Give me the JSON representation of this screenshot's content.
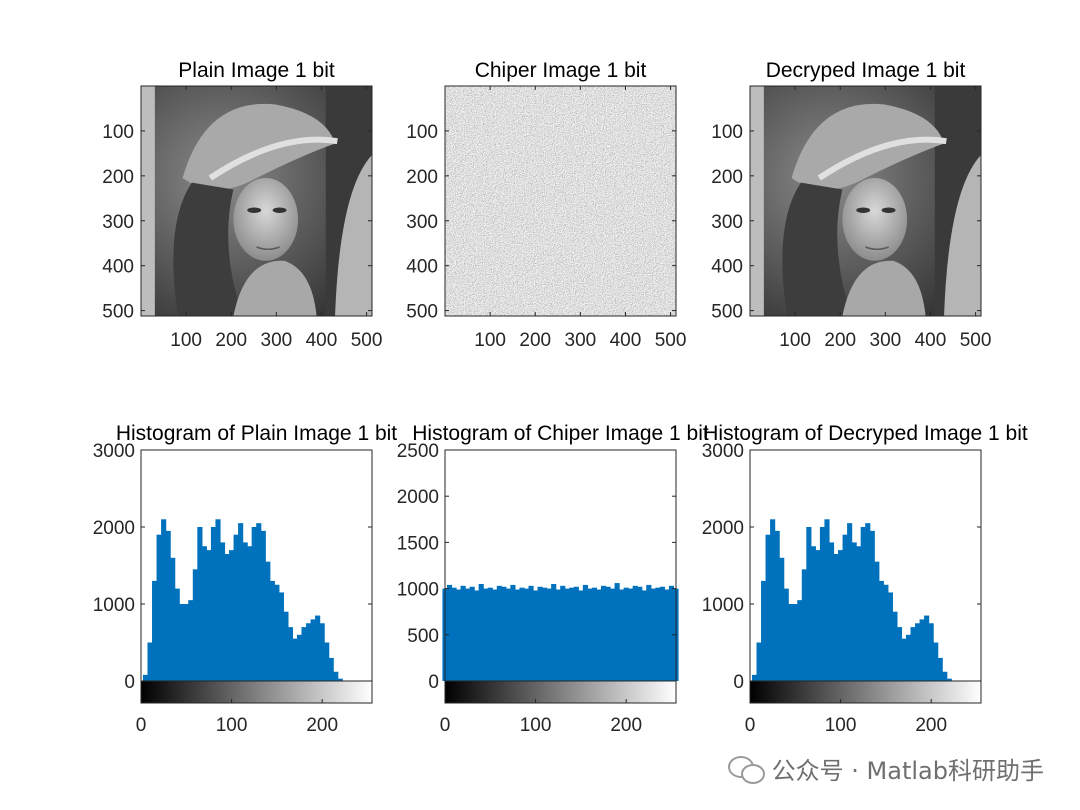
{
  "chart_data": [
    {
      "type": "image",
      "title": "Plain Image 1 bit",
      "content": "grayscale photo",
      "image_size": [
        512,
        512
      ],
      "xticks": [
        100,
        200,
        300,
        400,
        500
      ],
      "yticks": [
        100,
        200,
        300,
        400,
        500
      ]
    },
    {
      "type": "image",
      "title": "Chiper Image 1 bit",
      "content": "random noise",
      "image_size": [
        512,
        512
      ],
      "xticks": [
        100,
        200,
        300,
        400,
        500
      ],
      "yticks": [
        100,
        200,
        300,
        400,
        500
      ]
    },
    {
      "type": "image",
      "title": "Decryped Image 1 bit",
      "content": "grayscale photo",
      "image_size": [
        512,
        512
      ],
      "xticks": [
        100,
        200,
        300,
        400,
        500
      ],
      "yticks": [
        100,
        200,
        300,
        400,
        500
      ]
    },
    {
      "type": "bar",
      "title": "Histogram of Plain Image 1 bit",
      "color": "#0072BD",
      "xlim": [
        0,
        255
      ],
      "ylim": [
        0,
        3000
      ],
      "xticks": [
        0,
        100,
        200
      ],
      "yticks": [
        0,
        1000,
        2000,
        3000
      ],
      "colorbar": "grayscale",
      "x": [
        0,
        5,
        10,
        15,
        20,
        25,
        30,
        35,
        40,
        45,
        50,
        55,
        60,
        65,
        70,
        75,
        80,
        85,
        90,
        95,
        100,
        105,
        110,
        115,
        120,
        125,
        130,
        135,
        140,
        145,
        150,
        155,
        160,
        165,
        170,
        175,
        180,
        185,
        190,
        195,
        200,
        205,
        210,
        215,
        220,
        225,
        230,
        235,
        240,
        245,
        250,
        255
      ],
      "values": [
        0,
        80,
        500,
        1300,
        1900,
        2100,
        1950,
        1600,
        1200,
        1000,
        1000,
        1050,
        1450,
        2000,
        1750,
        1700,
        2000,
        2100,
        1800,
        1650,
        1700,
        1900,
        2050,
        1800,
        1750,
        2000,
        2050,
        1950,
        1550,
        1300,
        1250,
        1150,
        900,
        700,
        550,
        600,
        700,
        750,
        800,
        850,
        750,
        500,
        300,
        120,
        30,
        0,
        0,
        0,
        0,
        0,
        0,
        0
      ]
    },
    {
      "type": "bar",
      "title": "Histogram of Chiper Image 1 bit",
      "color": "#0072BD",
      "xlim": [
        0,
        255
      ],
      "ylim": [
        0,
        2500
      ],
      "xticks": [
        0,
        100,
        200
      ],
      "yticks": [
        0,
        500,
        1000,
        1500,
        2000,
        2500
      ],
      "colorbar": "grayscale",
      "x": [
        0,
        5,
        10,
        15,
        20,
        25,
        30,
        35,
        40,
        45,
        50,
        55,
        60,
        65,
        70,
        75,
        80,
        85,
        90,
        95,
        100,
        105,
        110,
        115,
        120,
        125,
        130,
        135,
        140,
        145,
        150,
        155,
        160,
        165,
        170,
        175,
        180,
        185,
        190,
        195,
        200,
        205,
        210,
        215,
        220,
        225,
        230,
        235,
        240,
        245,
        250,
        255
      ],
      "values": [
        1000,
        1040,
        1010,
        990,
        1030,
        1000,
        1020,
        980,
        1050,
        1000,
        1010,
        990,
        1030,
        1020,
        1000,
        1040,
        990,
        1010,
        1000,
        1030,
        980,
        1020,
        1010,
        1000,
        1050,
        990,
        1030,
        1000,
        1010,
        1020,
        980,
        1040,
        1000,
        1010,
        990,
        1030,
        1020,
        1000,
        1060,
        990,
        1010,
        1000,
        1030,
        1020,
        980,
        1040,
        1000,
        1010,
        1020,
        990,
        1030,
        1000
      ]
    },
    {
      "type": "bar",
      "title": "Histogram of Decryped Image 1 bit",
      "color": "#0072BD",
      "xlim": [
        0,
        255
      ],
      "ylim": [
        0,
        3000
      ],
      "xticks": [
        0,
        100,
        200
      ],
      "yticks": [
        0,
        1000,
        2000,
        3000
      ],
      "colorbar": "grayscale",
      "x": [
        0,
        5,
        10,
        15,
        20,
        25,
        30,
        35,
        40,
        45,
        50,
        55,
        60,
        65,
        70,
        75,
        80,
        85,
        90,
        95,
        100,
        105,
        110,
        115,
        120,
        125,
        130,
        135,
        140,
        145,
        150,
        155,
        160,
        165,
        170,
        175,
        180,
        185,
        190,
        195,
        200,
        205,
        210,
        215,
        220,
        225,
        230,
        235,
        240,
        245,
        250,
        255
      ],
      "values": [
        0,
        80,
        500,
        1300,
        1900,
        2100,
        1950,
        1600,
        1200,
        1000,
        1000,
        1050,
        1450,
        2000,
        1750,
        1700,
        2000,
        2100,
        1800,
        1650,
        1700,
        1900,
        2050,
        1800,
        1750,
        2000,
        2050,
        1950,
        1550,
        1300,
        1250,
        1150,
        900,
        700,
        550,
        600,
        700,
        750,
        800,
        850,
        750,
        500,
        300,
        120,
        30,
        0,
        0,
        0,
        0,
        0,
        0,
        0
      ]
    }
  ],
  "watermark": {
    "icon": "wechat-icon",
    "text": "公众号 · Matlab科研助手"
  }
}
